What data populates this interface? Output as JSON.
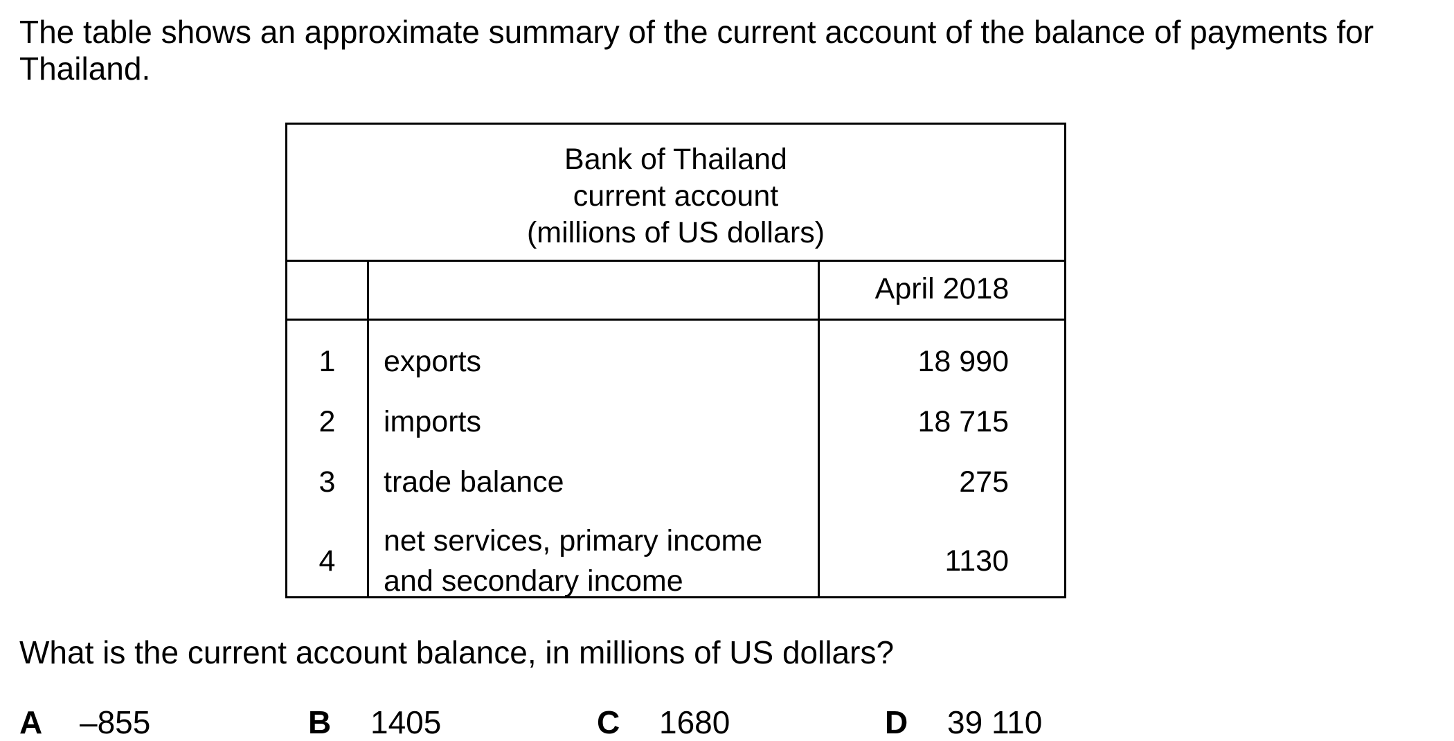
{
  "intro_text": "The table shows an approximate summary of the current account of the balance of payments for Thailand.",
  "table": {
    "title_lines": [
      "Bank of Thailand",
      "current account",
      "(millions of US dollars)"
    ],
    "column_header": "April 2018",
    "rows": [
      {
        "num": "1",
        "label_lines": [
          "exports"
        ],
        "value": "18 990"
      },
      {
        "num": "2",
        "label_lines": [
          "imports"
        ],
        "value": "18 715"
      },
      {
        "num": "3",
        "label_lines": [
          "trade balance"
        ],
        "value": "275"
      },
      {
        "num": "4",
        "label_lines": [
          "net services, primary income",
          "and secondary income"
        ],
        "value": "1130"
      }
    ]
  },
  "question": "What is the current account balance, in millions of US dollars?",
  "options": [
    {
      "letter": "A",
      "value": "–855"
    },
    {
      "letter": "B",
      "value": "1405"
    },
    {
      "letter": "C",
      "value": "1680"
    },
    {
      "letter": "D",
      "value": "39 110"
    }
  ]
}
